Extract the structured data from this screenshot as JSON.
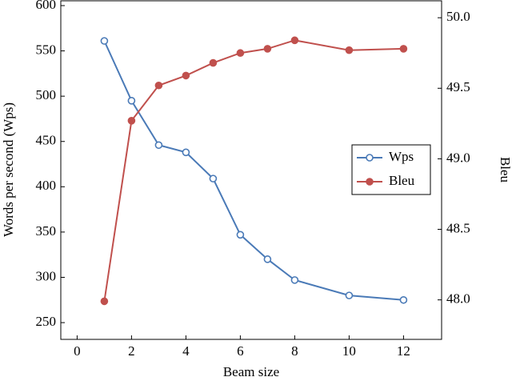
{
  "chart_data": {
    "type": "line",
    "xlabel": "Beam size",
    "ylabel": "Words per second (Wps)",
    "y2label": "Bleu",
    "x": [
      1,
      2,
      3,
      4,
      5,
      6,
      7,
      8,
      10,
      12
    ],
    "series": [
      {
        "name": "Wps",
        "color": "#4a7ab7",
        "marker": "open",
        "values": [
          561,
          495,
          446,
          438,
          409,
          347,
          320,
          297,
          280,
          275
        ]
      },
      {
        "name": "Bleu",
        "color": "#c0504d",
        "marker": "filled",
        "axis": "y2",
        "values": [
          47.99,
          49.27,
          49.52,
          49.59,
          49.68,
          49.75,
          49.78,
          49.84,
          49.77,
          49.78
        ]
      }
    ],
    "xlim": [
      -0.6,
      13.4
    ],
    "xticks": [
      0,
      2,
      4,
      6,
      8,
      10,
      12
    ],
    "ylim": [
      231.5,
      605.3
    ],
    "yticks": [
      250,
      300,
      350,
      400,
      450,
      500,
      550,
      600
    ],
    "y2lim": [
      47.72,
      50.12
    ],
    "y2ticks": [
      {
        "value": 48,
        "label": "48.0"
      },
      48.5,
      {
        "value": 49,
        "label": "49.0"
      },
      49.5,
      {
        "value": 50,
        "label": "50.0"
      }
    ],
    "legend": "right"
  }
}
